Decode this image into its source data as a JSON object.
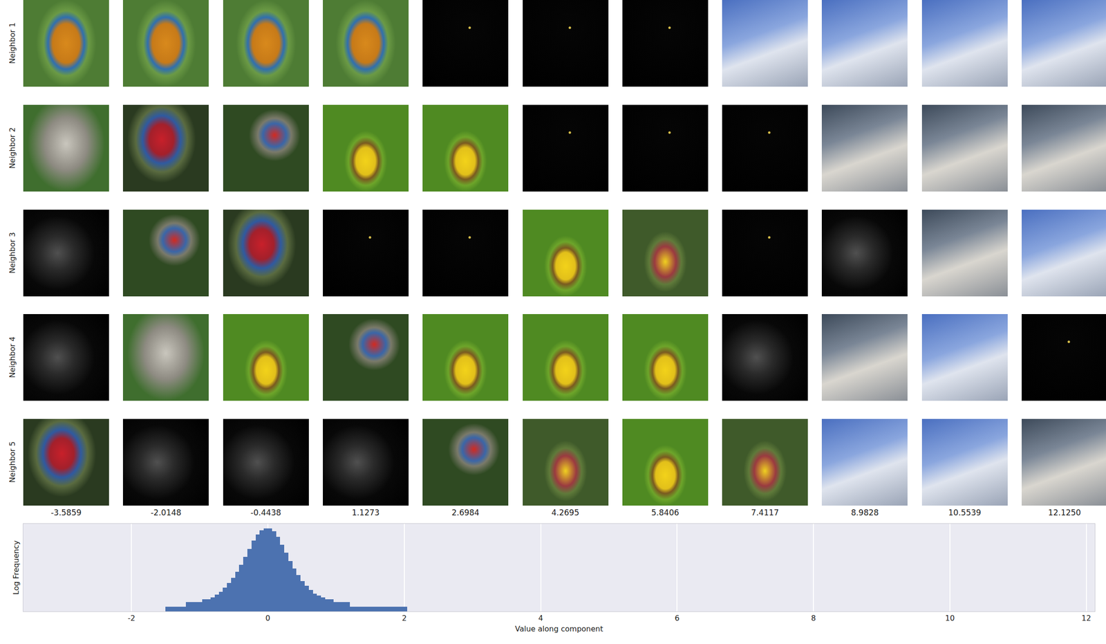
{
  "image_grid": {
    "row_labels": [
      "Neighbor 1",
      "Neighbor 2",
      "Neighbor 3",
      "Neighbor 4",
      "Neighbor 5"
    ],
    "column_labels": [
      "-3.5859",
      "-2.0148",
      "-0.4438",
      "1.1273",
      "2.6984",
      "4.2695",
      "5.8406",
      "7.4117",
      "8.9828",
      "10.5539",
      "12.1250"
    ]
  },
  "chart_data": {
    "type": "histogram",
    "x_label": "Value along component",
    "y_label": "Log Frequency",
    "bins": [
      -1.5,
      -1.44,
      -1.38,
      -1.32,
      -1.26,
      -1.2,
      -1.14,
      -1.08,
      -1.02,
      -0.96,
      -0.9,
      -0.84,
      -0.78,
      -0.72,
      -0.66,
      -0.6,
      -0.54,
      -0.48,
      -0.42,
      -0.36,
      -0.3,
      -0.24,
      -0.18,
      -0.12,
      -0.06,
      0,
      0.06,
      0.12,
      0.18,
      0.24,
      0.3,
      0.36,
      0.42,
      0.48,
      0.54,
      0.6,
      0.66,
      0.72,
      0.78,
      0.84,
      0.9,
      0.96,
      1.02,
      1.08,
      1.14,
      1.2,
      1.26,
      1.32,
      1.38,
      1.44,
      1.5,
      1.56,
      1.62,
      1.68,
      1.74,
      1.8,
      1.86,
      1.92,
      1.98,
      2.04
    ],
    "counts": [
      1,
      1,
      1,
      1,
      1,
      2,
      2,
      2,
      2,
      3,
      3,
      4,
      6,
      9,
      16,
      32,
      71,
      174,
      469,
      1560,
      5060,
      16600,
      40000,
      74000,
      99000,
      98000,
      67000,
      30300,
      9200,
      2800,
      850,
      284,
      107,
      43,
      22,
      12,
      7,
      5,
      4,
      3,
      3,
      2,
      2,
      2,
      2,
      1,
      1,
      1,
      1,
      1,
      1,
      1,
      1,
      1,
      1,
      1,
      1,
      1,
      1
    ],
    "color": "#4c72b0",
    "log": "y",
    "grid": true,
    "tick_labels": "x",
    "xlim": [
      -3.5859,
      12.125
    ],
    "xticks": [
      -2,
      0,
      2,
      4,
      6,
      8,
      10,
      12
    ],
    "ylim": [
      0.5,
      200000
    ]
  }
}
